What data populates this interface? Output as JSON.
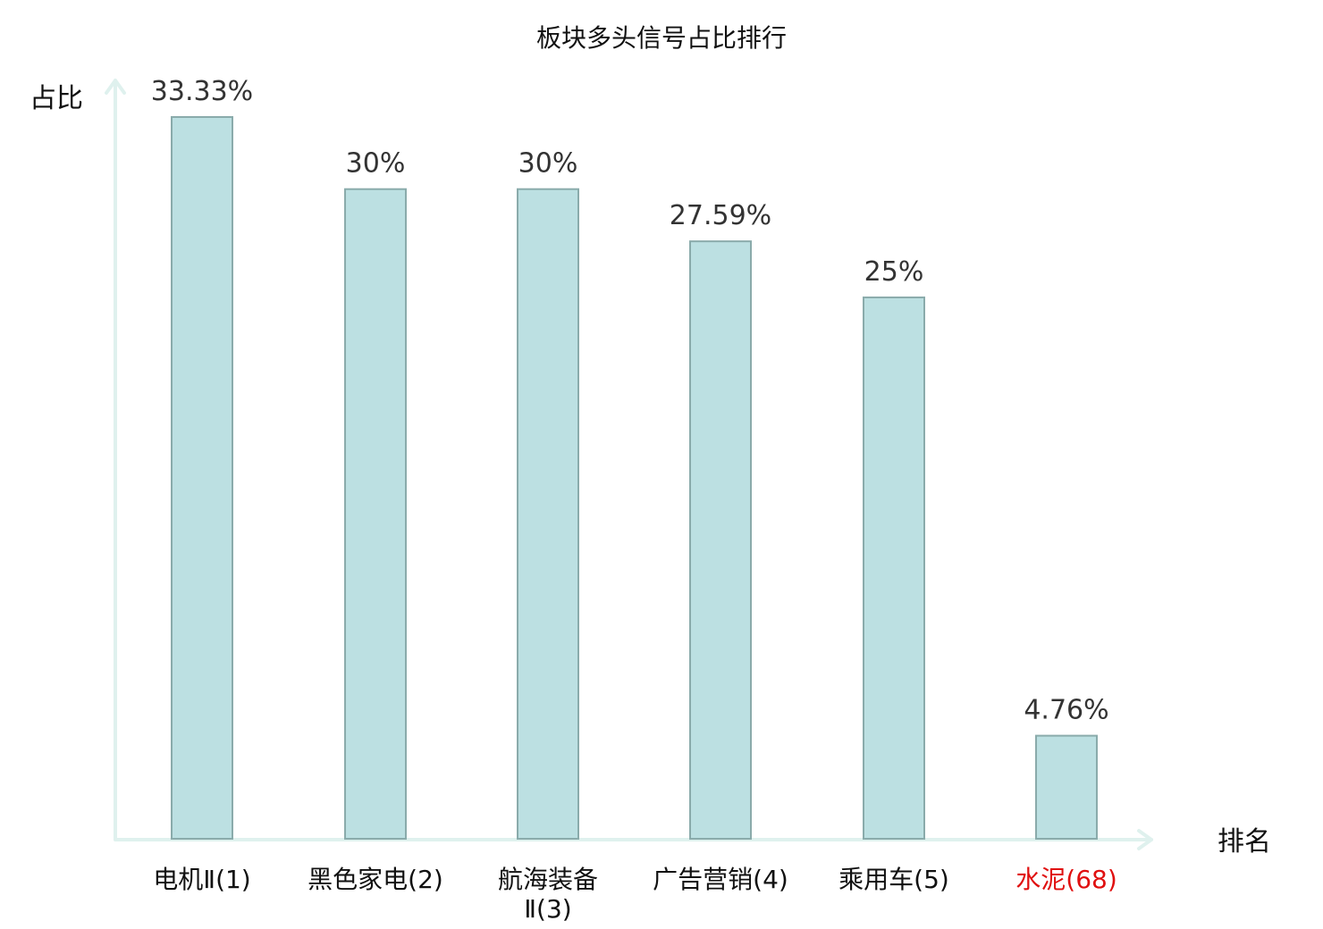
{
  "chart_data": {
    "type": "bar",
    "title": "板块多头信号占比排行",
    "ylabel": "占比",
    "xlabel": "排名",
    "ylim": [
      0,
      35
    ],
    "grid": false,
    "categories": [
      {
        "name": "电机Ⅱ",
        "rank": "(1)",
        "highlight": false
      },
      {
        "name": "黑色家电",
        "rank": "(2)",
        "highlight": false
      },
      {
        "name": "航海装备Ⅱ",
        "rank": "(3)",
        "highlight": false
      },
      {
        "name": "广告营销",
        "rank": "(4)",
        "highlight": false
      },
      {
        "name": "乘用车",
        "rank": "(5)",
        "highlight": false
      },
      {
        "name": "水泥",
        "rank": "(68)",
        "highlight": true
      }
    ],
    "values": [
      33.33,
      30,
      30,
      27.59,
      25,
      4.76
    ],
    "value_labels": [
      "33.33%",
      "30%",
      "30%",
      "27.59%",
      "25%",
      "4.76%"
    ],
    "colors": {
      "bar_fill": "#bce0e2",
      "bar_stroke": "#8aabab",
      "axis": "#dff1ee",
      "highlight_text": "#e01010"
    }
  }
}
